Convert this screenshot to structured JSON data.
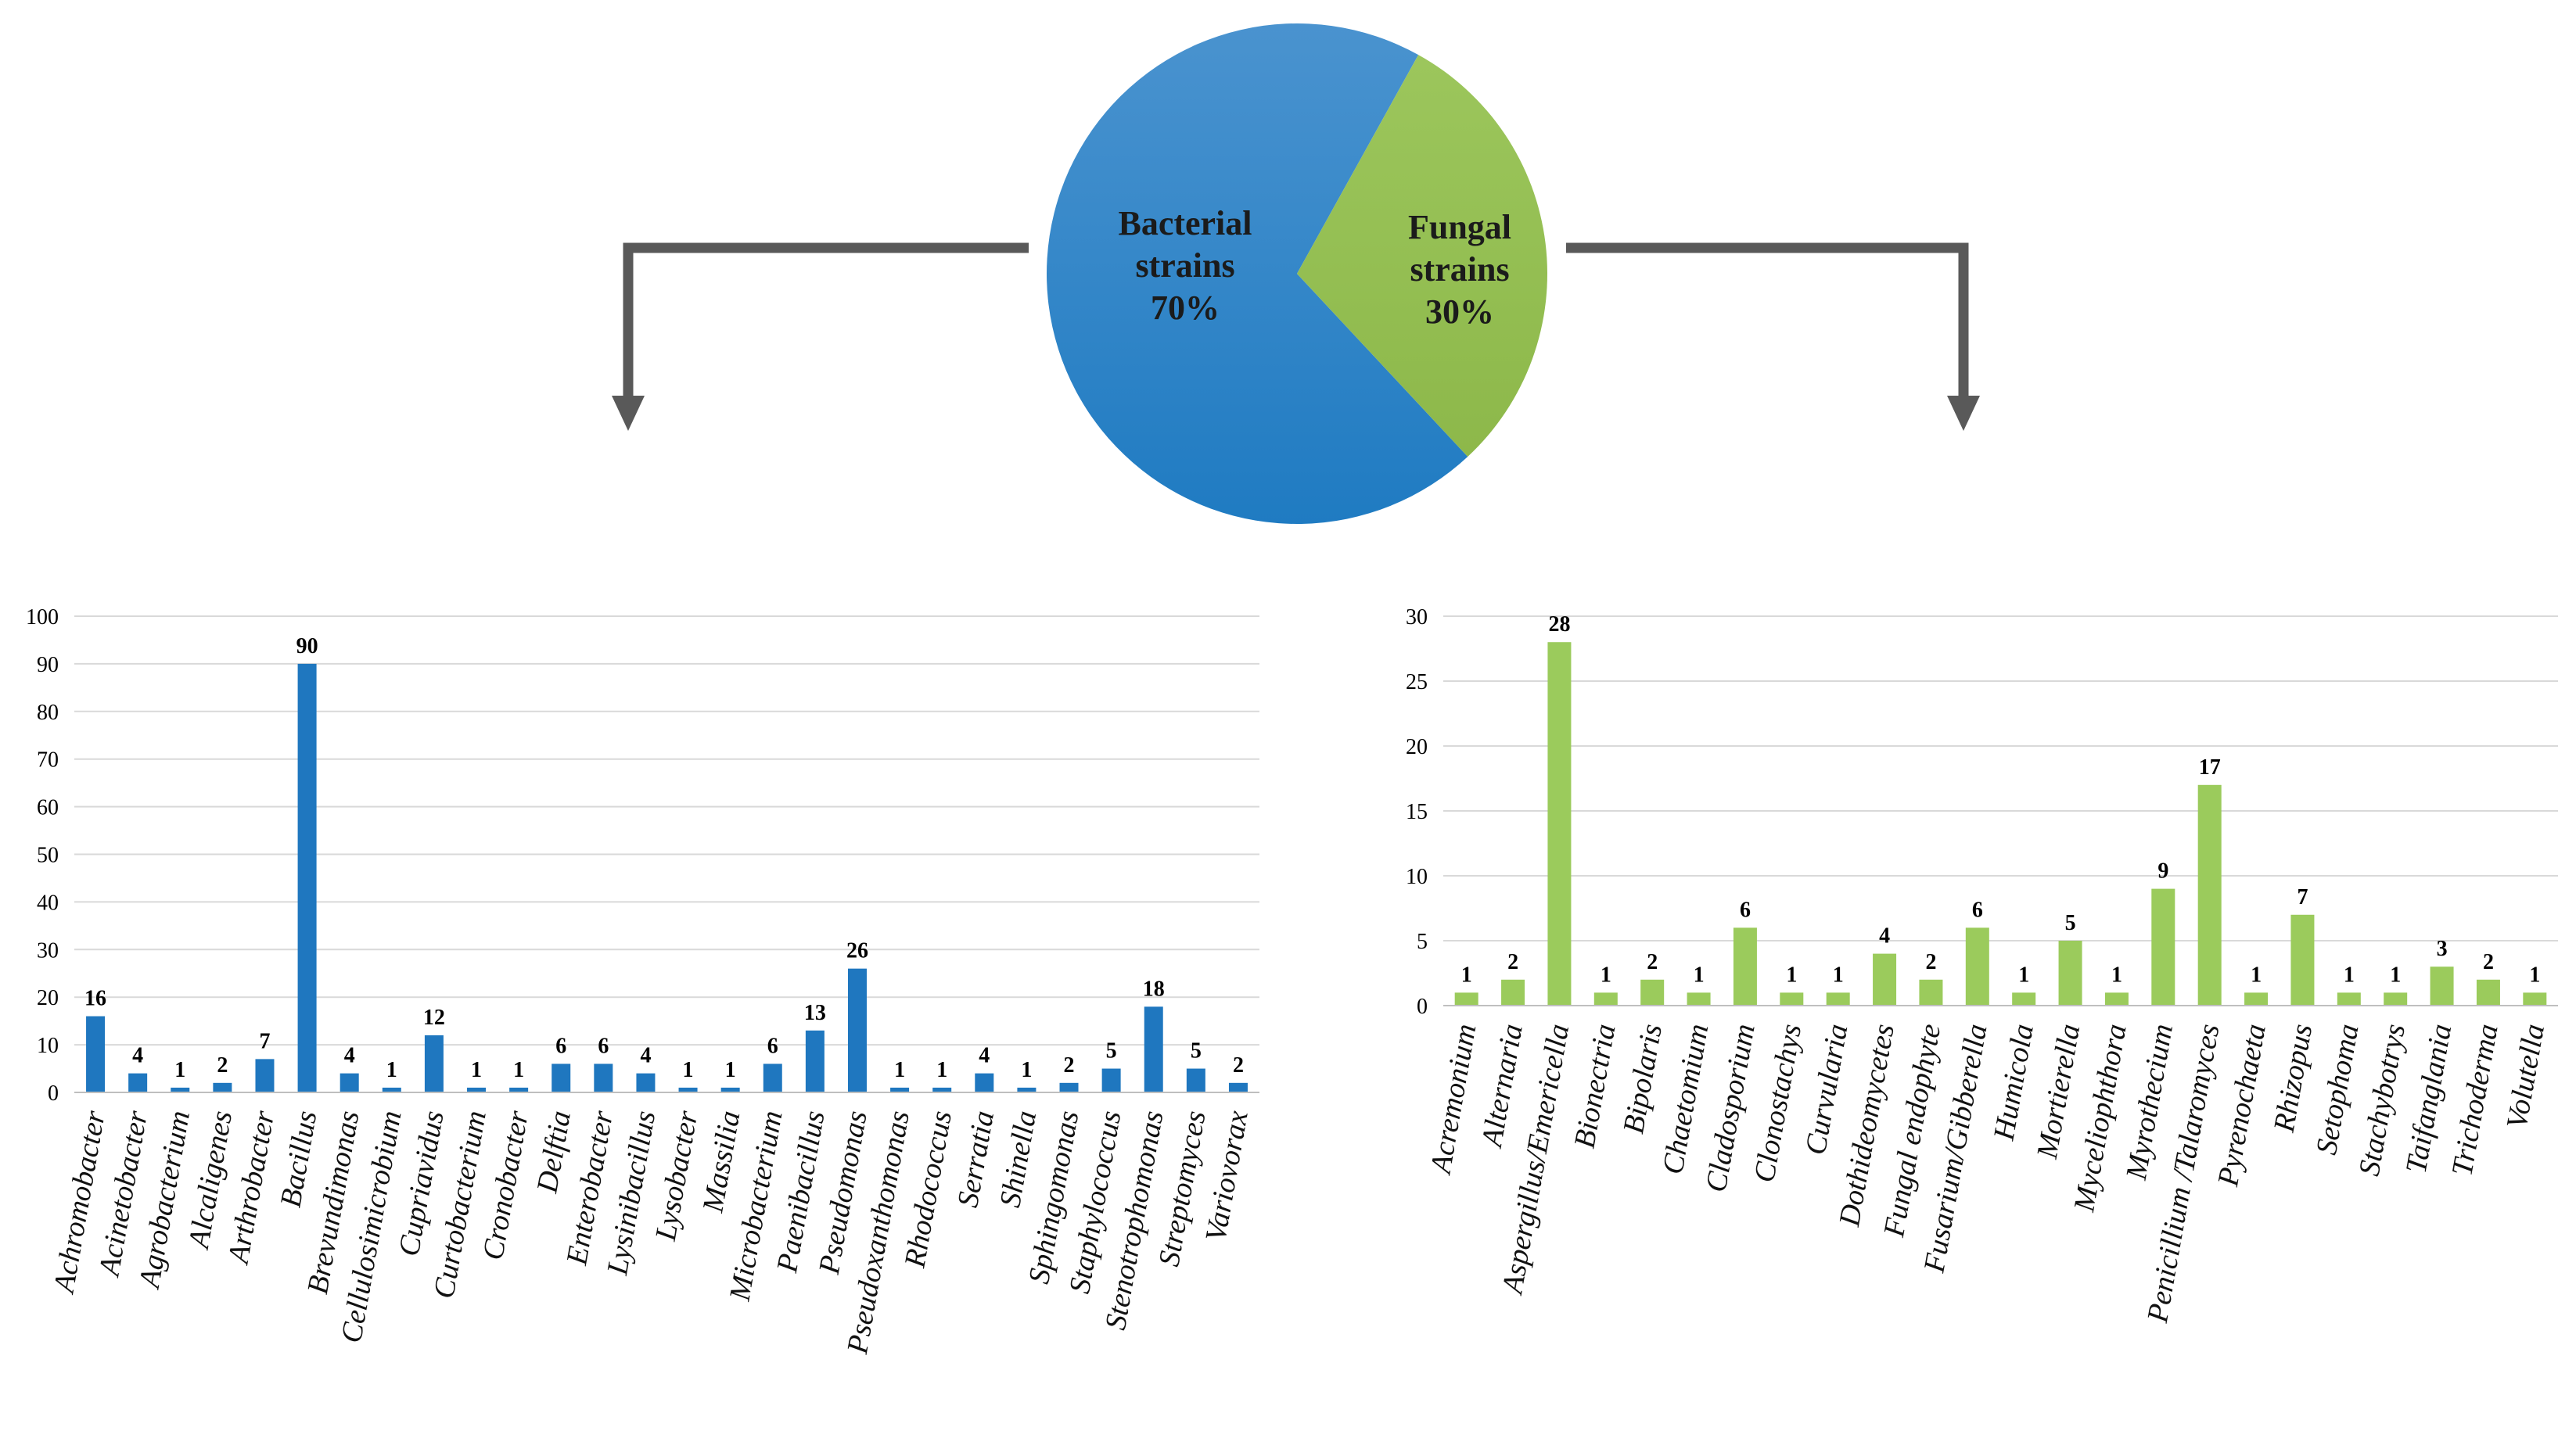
{
  "colors": {
    "bacteria_pie": "#1f7bc2",
    "fungi_pie": "#8db84a",
    "bacteria_bar": "#1f77bf",
    "fungi_bar": "#9bcb5c",
    "arrow": "#595959",
    "grid": "#d9d9d9"
  },
  "chart_data": [
    {
      "type": "pie",
      "slices": [
        {
          "label_lines": [
            "Bacterial",
            "strains",
            "70%"
          ],
          "value": 70
        },
        {
          "label_lines": [
            "Fungal",
            "strains",
            "30%"
          ],
          "value": 30
        }
      ]
    },
    {
      "type": "bar",
      "ylim": [
        0,
        100
      ],
      "yticks": [
        0,
        10,
        20,
        30,
        40,
        50,
        60,
        70,
        80,
        90,
        100
      ],
      "grid": true,
      "categories": [
        "Achromobacter",
        "Acinetobacter",
        "Agrobacterium",
        "Alcaligenes",
        "Arthrobacter",
        "Bacillus",
        "Brevundimonas",
        "Cellulosimicrobium",
        "Cupriavidus",
        "Curtobacterium",
        "Cronobacter",
        "Delftia",
        "Enterobacter",
        "Lysinibacillus",
        "Lysobacter",
        "Massilia",
        "Microbacterium",
        "Paenibacillus",
        "Pseudomonas",
        "Pseudoxanthomonas",
        "Rhodococcus",
        "Serratia",
        "Shinella",
        "Sphingomonas",
        "Staphylococcus",
        "Stenotrophomonas",
        "Streptomyces",
        "Variovorax"
      ],
      "values": [
        16,
        4,
        1,
        2,
        7,
        90,
        4,
        1,
        12,
        1,
        1,
        6,
        6,
        4,
        1,
        1,
        6,
        13,
        26,
        1,
        1,
        4,
        1,
        2,
        5,
        18,
        5,
        2
      ]
    },
    {
      "type": "bar",
      "ylim": [
        0,
        30
      ],
      "yticks": [
        0,
        5,
        10,
        15,
        20,
        25,
        30
      ],
      "grid": true,
      "categories": [
        "Acremonium",
        "Alternaria",
        "Aspergillus/Emericella",
        "Bionectria",
        "Bipolaris",
        "Chaetomium",
        "Cladosporium",
        "Clonostachys",
        "Curvularia",
        "Dothideomycetes",
        "Fungal endophyte",
        "Fusarium/Gibberella",
        "Humicola",
        "Mortierella",
        "Myceliophthora",
        "Myrothecium",
        "Penicillium /Talaromyces",
        "Pyrenochaeta",
        "Rhizopus",
        "Setophoma",
        "Stachybotrys",
        "Taifanglania",
        "Trichoderma",
        "Volutella"
      ],
      "values": [
        1,
        2,
        28,
        1,
        2,
        1,
        6,
        1,
        1,
        4,
        2,
        6,
        1,
        5,
        1,
        9,
        17,
        1,
        7,
        1,
        1,
        3,
        2,
        1
      ]
    }
  ]
}
